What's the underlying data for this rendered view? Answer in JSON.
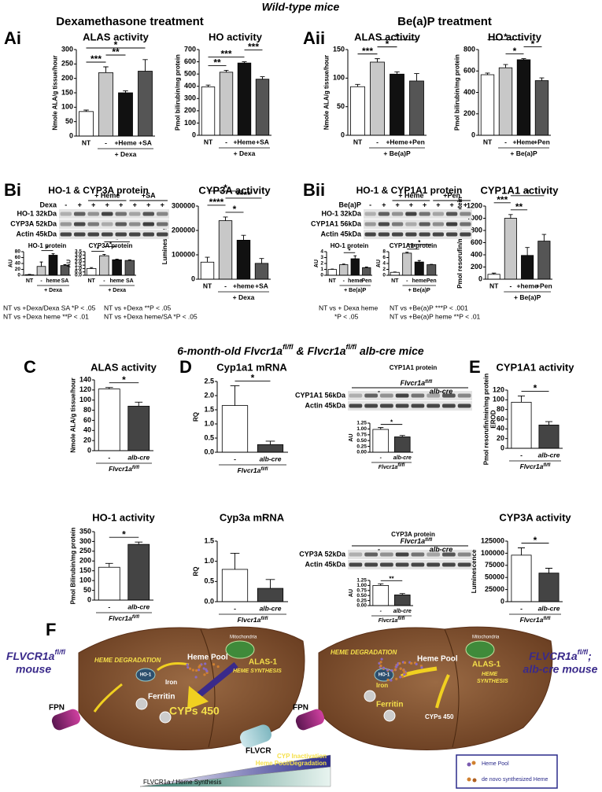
{
  "headings": {
    "top": "Wild-type mice",
    "left": "Dexamethasone treatment",
    "right": "Be(a)P treatment",
    "middle": [
      "6-month-old Flvcr1a",
      "fl/fl",
      " & Flvcr1a",
      "fl/fl",
      "alb-cre mice"
    ]
  },
  "panel_labels": [
    "Ai",
    "Aii",
    "Bi",
    "Bii",
    "C",
    "D",
    "E",
    "F"
  ],
  "chart_data": [
    {
      "type": "bar",
      "title": "ALAS activity",
      "ylabel": "Nmole ALA/g tissue/hour",
      "categories": [
        "NT",
        "-",
        "+Heme",
        "+SA"
      ],
      "group": "+ Dexa",
      "values": [
        85,
        220,
        150,
        225
      ],
      "errors": [
        5,
        20,
        7,
        40
      ],
      "colors": [
        "#ffffff",
        "#c8c8c8",
        "#111111",
        "#555555"
      ],
      "ylim": [
        0,
        300
      ],
      "yticks": [
        0,
        50,
        100,
        150,
        200,
        250,
        300
      ],
      "significance": [
        "***",
        "**",
        "*"
      ]
    },
    {
      "type": "bar",
      "title": "HO activity",
      "ylabel": "Pmol bilirubin/mg protein",
      "categories": [
        "NT",
        "-",
        "+Heme",
        "+SA"
      ],
      "group": "+ Dexa",
      "values": [
        395,
        515,
        590,
        458
      ],
      "errors": [
        15,
        15,
        10,
        20
      ],
      "colors": [
        "#ffffff",
        "#c8c8c8",
        "#111111",
        "#555555"
      ],
      "ylim": [
        0,
        700
      ],
      "yticks": [
        0,
        100,
        200,
        300,
        400,
        500,
        600,
        700
      ],
      "significance": [
        "**",
        "***",
        "***"
      ]
    },
    {
      "type": "bar",
      "title": "ALAS activity",
      "ylabel": "Nmole ALA/g tissue/hour",
      "categories": [
        "NT",
        "-",
        "+Heme",
        "+Pen"
      ],
      "group": "+ Be(a)P",
      "values": [
        85,
        128,
        107,
        95
      ],
      "errors": [
        4,
        6,
        4,
        13
      ],
      "colors": [
        "#ffffff",
        "#c8c8c8",
        "#111111",
        "#555555"
      ],
      "ylim": [
        0,
        150
      ],
      "yticks": [
        0,
        50,
        100,
        150
      ],
      "significance": [
        "***",
        "*",
        "*"
      ]
    },
    {
      "type": "bar",
      "title": "HO activity",
      "ylabel": "Pmol bilirubin/mg protein",
      "categories": [
        "NT",
        "-",
        "+Heme",
        "+Pen"
      ],
      "group": "+ Be(a)P",
      "values": [
        565,
        630,
        705,
        510
      ],
      "errors": [
        15,
        30,
        10,
        25
      ],
      "colors": [
        "#ffffff",
        "#c8c8c8",
        "#111111",
        "#555555"
      ],
      "ylim": [
        0,
        800
      ],
      "yticks": [
        0,
        200,
        400,
        600,
        800
      ],
      "significance": [
        "*",
        "*",
        "*"
      ]
    },
    {
      "type": "bar",
      "title": "HO-1 protein",
      "ylabel": "AU",
      "categories": [
        "NT",
        "-",
        "heme",
        "SA"
      ],
      "group": "+ Dexa",
      "values": [
        2,
        30,
        68,
        33
      ],
      "errors": [
        1,
        15,
        5,
        3
      ],
      "colors": [
        "#ffffff",
        "#c8c8c8",
        "#111111",
        "#555555"
      ],
      "ylim": [
        0,
        80
      ],
      "yticks": [
        0,
        20,
        40,
        60,
        80
      ],
      "significance": [
        "*"
      ]
    },
    {
      "type": "bar",
      "title": "CYP3A protein",
      "ylabel": "AU",
      "categories": [
        "NT",
        "-",
        "heme",
        "SA"
      ],
      "group": "+ Dexa",
      "values": [
        1.0,
        2.9,
        2.3,
        2.2
      ],
      "errors": [
        0.15,
        0.2,
        0.1,
        0.1
      ],
      "colors": [
        "#ffffff",
        "#c8c8c8",
        "#111111",
        "#555555"
      ],
      "ylim": [
        0,
        3.5
      ],
      "yticks": [
        {
          "value": 0,
          "label": "0.0"
        },
        0.5,
        {
          "value": 1,
          "label": "1.0"
        },
        1.5,
        {
          "value": 2,
          "label": "2.0"
        },
        2.5,
        {
          "value": 3,
          "label": "3.0"
        },
        3.5
      ],
      "significance": [
        "*",
        "*",
        "*"
      ]
    },
    {
      "type": "bar",
      "title": "CYP3A activity",
      "ylabel": "Luminescence",
      "categories": [
        "NT",
        "-",
        "+heme",
        "+SA"
      ],
      "group": "+ Dexa",
      "values": [
        70000,
        240000,
        160000,
        65000
      ],
      "errors": [
        20000,
        15000,
        20000,
        20000
      ],
      "colors": [
        "#ffffff",
        "#c8c8c8",
        "#111111",
        "#555555"
      ],
      "ylim": [
        0,
        300000
      ],
      "yticks": [
        0,
        100000,
        200000,
        300000
      ],
      "significance": [
        "*",
        "****",
        "****",
        "*"
      ]
    },
    {
      "type": "bar",
      "title": "HO-1 protein",
      "ylabel": "AU",
      "categories": [
        "NT",
        "-",
        "heme",
        "Pen"
      ],
      "group": "+ Be(a)P",
      "values": [
        1.0,
        1.8,
        2.8,
        1.3
      ],
      "errors": [
        0.05,
        0.1,
        0.5,
        0.1
      ],
      "colors": [
        "#ffffff",
        "#c8c8c8",
        "#111111",
        "#555555"
      ],
      "ylim": [
        0,
        4
      ],
      "yticks": [
        0,
        1,
        2,
        3,
        4
      ],
      "significance": [
        "*"
      ]
    },
    {
      "type": "bar",
      "title": "CYP1A1 protein",
      "ylabel": "AU",
      "categories": [
        "NT",
        "-",
        "heme",
        "Pen"
      ],
      "group": "+ Be(a)P",
      "values": [
        1.0,
        7.5,
        4.5,
        3.6
      ],
      "errors": [
        0.1,
        0.3,
        0.5,
        0.1
      ],
      "colors": [
        "#ffffff",
        "#c8c8c8",
        "#111111",
        "#555555"
      ],
      "ylim": [
        0,
        8
      ],
      "yticks": [
        0,
        2,
        4,
        6,
        8
      ],
      "significance": [
        "**",
        "*"
      ]
    },
    {
      "type": "bar",
      "title": "CYP1A1 activity",
      "ylabel": "Pmol resorufin/min/mg protein",
      "categories": [
        "NT",
        "-",
        "+heme",
        "+Pen"
      ],
      "group": "+ Be(a)P",
      "values": [
        80,
        1000,
        390,
        625
      ],
      "errors": [
        20,
        60,
        130,
        110
      ],
      "colors": [
        "#ffffff",
        "#c8c8c8",
        "#111111",
        "#555555"
      ],
      "ylim": [
        0,
        1200
      ],
      "yticks": [
        0,
        200,
        400,
        600,
        800,
        1000,
        1200
      ],
      "significance": [
        "**",
        "***",
        "*"
      ]
    },
    {
      "type": "bar",
      "title": "ALAS activity",
      "ylabel": "Nmole ALA/g tissue/hour",
      "categories": [
        "-",
        "alb-cre"
      ],
      "group": "Flvcr1a",
      "group_sup": "fl/fl",
      "values": [
        122,
        88
      ],
      "errors": [
        3,
        8
      ],
      "colors": [
        "#ffffff",
        "#444444"
      ],
      "ylim": [
        0,
        140
      ],
      "yticks": [
        0,
        20,
        40,
        60,
        80,
        100,
        120,
        140
      ],
      "significance": [
        "*"
      ]
    },
    {
      "type": "bar",
      "title": "HO-1 activity",
      "ylabel": "Pmol Bilirubin/mg protein",
      "categories": [
        "-",
        "alb-cre"
      ],
      "group": "Flvcr1a",
      "group_sup": "fl/fl",
      "values": [
        168,
        285
      ],
      "errors": [
        20,
        12
      ],
      "colors": [
        "#ffffff",
        "#444444"
      ],
      "ylim": [
        0,
        350
      ],
      "yticks": [
        0,
        50,
        100,
        150,
        200,
        250,
        300,
        350
      ],
      "significance": [
        "*"
      ]
    },
    {
      "type": "bar",
      "title": "Cyp1a1 mRNA",
      "ylabel": "RQ",
      "categories": [
        "-",
        "alb-cre"
      ],
      "group": "Flvcr1a",
      "group_sup": "fl/fl",
      "values": [
        1.65,
        0.27
      ],
      "errors": [
        0.7,
        0.12
      ],
      "colors": [
        "#ffffff",
        "#444444"
      ],
      "ylim": [
        0,
        2.5
      ],
      "yticks": [
        {
          "value": 0,
          "label": "0.0"
        },
        0.5,
        {
          "value": 1,
          "label": "1.0"
        },
        1.5,
        {
          "value": 2,
          "label": "2.0"
        },
        2.5
      ],
      "significance": [
        "*"
      ]
    },
    {
      "type": "bar",
      "title": "CYP1A1 protein",
      "ylabel": "AU",
      "categories": [
        "-",
        "alb-cre"
      ],
      "group": "Flvcr1a",
      "group_sup": "fl/fl",
      "values": [
        0.98,
        0.66
      ],
      "errors": [
        0.08,
        0.06
      ],
      "colors": [
        "#ffffff",
        "#444444"
      ],
      "ylim": [
        0,
        1.25
      ],
      "yticks": [
        {
          "value": 0,
          "label": "0.00"
        },
        0.25,
        {
          "value": 0.5,
          "label": "0.50"
        },
        0.75,
        {
          "value": 1,
          "label": "1.00"
        },
        1.25
      ],
      "significance": [
        "*"
      ]
    },
    {
      "type": "bar",
      "title": "CYP1A1 activity",
      "ylabel": "Pmol resorufin/min/mg protein",
      "ylabel2": "EROD",
      "categories": [
        "-",
        "alb-cre"
      ],
      "group": "Flvcr1a",
      "group_sup": "fl/fl",
      "values": [
        95,
        48
      ],
      "errors": [
        13,
        7
      ],
      "colors": [
        "#ffffff",
        "#444444"
      ],
      "ylim": [
        0,
        120
      ],
      "yticks": [
        0,
        20,
        40,
        60,
        80,
        100,
        120
      ],
      "significance": [
        "*"
      ]
    },
    {
      "type": "bar",
      "title": "Cyp3a mRNA",
      "ylabel": "RQ",
      "categories": [
        "-",
        "alb-cre"
      ],
      "group": "Flvcr1a",
      "group_sup": "fl/fl",
      "values": [
        0.8,
        0.33
      ],
      "errors": [
        0.4,
        0.22
      ],
      "colors": [
        "#ffffff",
        "#444444"
      ],
      "ylim": [
        0,
        1.5
      ],
      "yticks": [
        {
          "value": 0,
          "label": "0.0"
        },
        0.5,
        {
          "value": 1,
          "label": "1.0"
        },
        1.5
      ],
      "significance": []
    },
    {
      "type": "bar",
      "title": "CYP3A protein",
      "ylabel": "AU",
      "categories": [
        "-",
        "alb-cre"
      ],
      "group": "Flvcr1a",
      "group_sup": "fl/fl",
      "values": [
        1.0,
        0.53
      ],
      "errors": [
        0.08,
        0.07
      ],
      "colors": [
        "#ffffff",
        "#444444"
      ],
      "ylim": [
        0,
        1.25
      ],
      "yticks": [
        {
          "value": 0,
          "label": "0.00"
        },
        0.25,
        {
          "value": 0.5,
          "label": "0.50"
        },
        0.75,
        {
          "value": 1,
          "label": "1.00"
        },
        1.25
      ],
      "significance": [
        "**"
      ]
    },
    {
      "type": "bar",
      "title": "CYP3A activity",
      "ylabel": "Luminescence",
      "categories": [
        "-",
        "alb-cre"
      ],
      "group": "Flvcr1a",
      "group_sup": "fl/fl",
      "values": [
        96000,
        59000
      ],
      "errors": [
        15000,
        10000
      ],
      "colors": [
        "#ffffff",
        "#444444"
      ],
      "ylim": [
        0,
        125000
      ],
      "yticks": [
        0,
        25000,
        50000,
        75000,
        100000,
        125000
      ],
      "significance": [
        "*"
      ]
    }
  ],
  "blots": [
    {
      "title": "HO-1 & CYP3A protein",
      "header_label": "Dexa",
      "header": [
        "-",
        "+",
        "+",
        "+",
        "+",
        "+",
        "+",
        "+"
      ],
      "groups": [
        "+ Heme",
        "+SA"
      ],
      "rows": [
        "HO-1 32kDa",
        "CYP3A 52kDa",
        "Actin 45kDa"
      ]
    },
    {
      "title": "HO-1 & CYP1A1 protein",
      "header_label": "Be(a)P",
      "header": [
        "-",
        "+",
        "+",
        "+",
        "+",
        "+",
        "+",
        "+"
      ],
      "groups": [
        "+ Heme",
        "+Pen"
      ],
      "rows": [
        "HO-1 32kDa",
        "CYP1A1 56kDa",
        "Actin 45kDa"
      ]
    },
    {
      "group_title": [
        "Flvcr1a",
        "fl/fl"
      ],
      "header": [
        "-",
        "alb-cre"
      ],
      "rows": [
        "CYP1A1 56kDa",
        "Actin 45kDa"
      ]
    },
    {
      "group_title": [
        "Flvcr1a",
        "fl/fl"
      ],
      "header": [
        "-",
        "alb-cre"
      ],
      "rows": [
        "CYP3A 52kDa",
        "Actin 45kDa"
      ]
    }
  ],
  "notes": [
    "NT vs +Dexa/Dexa SA *P < .05",
    "NT vs +Dexa heme **P < .01",
    "NT vs +Dexa **P < .05",
    "NT vs +Dexa heme/SA *P < .05",
    "NT vs + Dexa heme",
    "*P < .05",
    "NT vs +Be(a)P ***P < .001",
    "NT vs +Be(a)P heme **P < .01"
  ],
  "diagram": {
    "left": {
      "title": [
        "FLVCR1a",
        "fl/fl",
        "mouse"
      ],
      "heme_degradation": "HEME DEGRADATION",
      "ho1": "HO-1",
      "iron": "Iron",
      "heme_pool": "Heme Pool",
      "alas": "ALAS-1",
      "heme_synthesis": "HEME SYNTHESIS",
      "mito": "Mitochondria",
      "ferritin": "Ferritin",
      "cyps": "CYPs 450",
      "fpn": "FPN",
      "flvcr": "FLVCR"
    },
    "right": {
      "title": [
        "FLVCR1a",
        "fl/fl",
        ";",
        "alb-cre mouse"
      ],
      "heme_degradation": "HEME DEGRADATION",
      "ho1": "HO-1",
      "iron": "Iron",
      "heme_pool": "Heme Pool",
      "alas": "ALAS-1",
      "heme_synthesis": "HEME",
      "heme_synthesis2": "SYNTHESIS",
      "mito": "Mitochondria",
      "ferritin": "Ferritin",
      "cyps": "CYPs 450",
      "fpn": "FPN"
    },
    "gradient": [
      "CYP Inactivation",
      "Heme Pool/Degradation",
      "FLVCR1a / Heme Synthesis"
    ],
    "legend": [
      "Heme Pool",
      "de novo synthesized Heme"
    ]
  }
}
